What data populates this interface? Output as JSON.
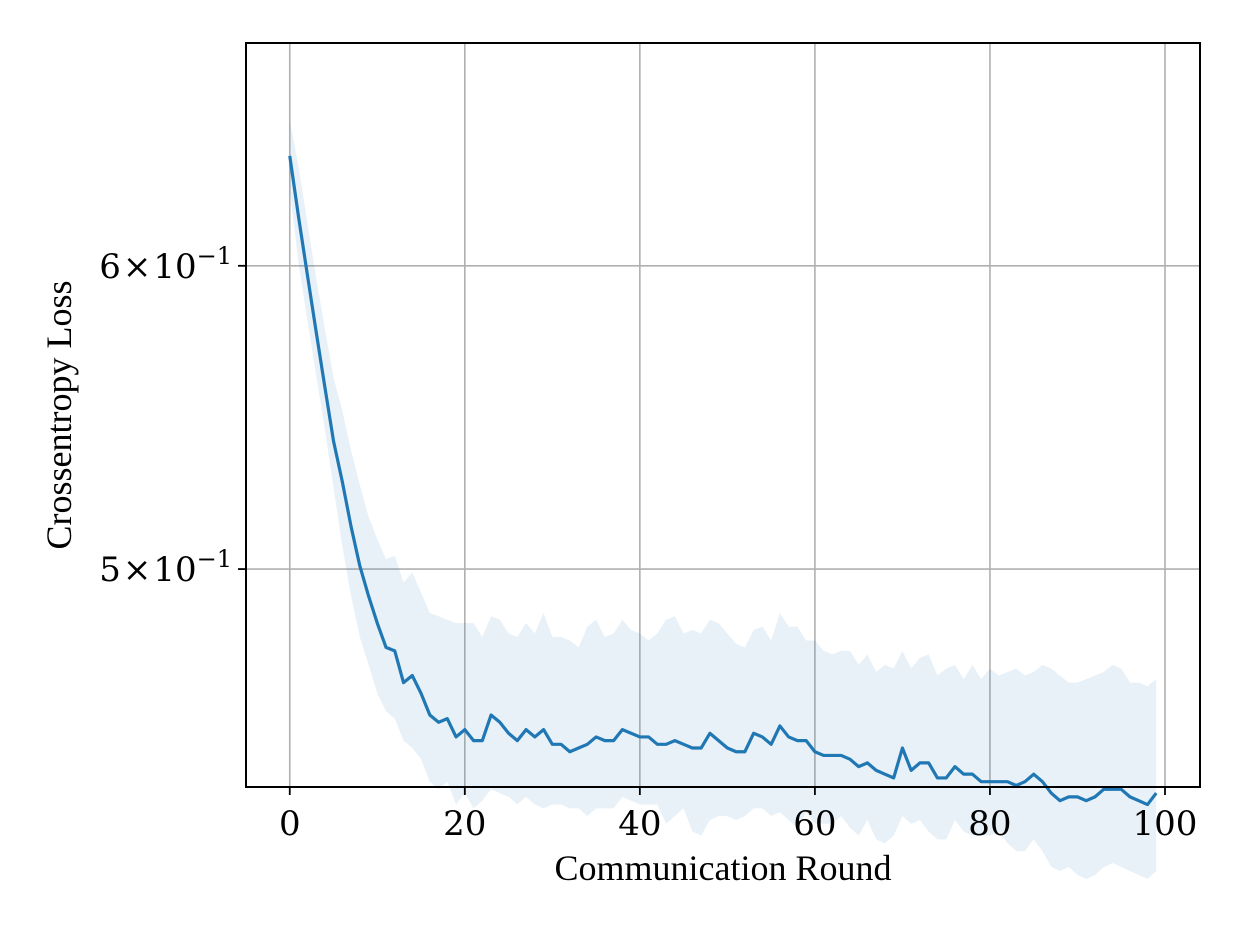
{
  "chart_data": {
    "type": "line",
    "title": "",
    "xlabel": "Communication Round",
    "ylabel": "Crossentropy Loss",
    "xlim": [
      -5,
      104
    ],
    "ylim": [
      0.4386,
      0.686
    ],
    "yscale": "log",
    "grid": true,
    "x_ticks": [
      {
        "value": 0,
        "label": "0"
      },
      {
        "value": 20,
        "label": "20"
      },
      {
        "value": 40,
        "label": "40"
      },
      {
        "value": 60,
        "label": "60"
      },
      {
        "value": 80,
        "label": "80"
      },
      {
        "value": 100,
        "label": "100"
      }
    ],
    "y_ticks": [
      {
        "value": 0.6,
        "base": "6",
        "times": "×",
        "exp_base": "10",
        "exp": "−1"
      },
      {
        "value": 0.5,
        "base": "5",
        "times": "×",
        "exp_base": "10",
        "exp": "−1"
      }
    ],
    "series": [
      {
        "color": "#1f77b4",
        "band_color": "#1f77b4",
        "band_opacity": 0.1,
        "x": [
          0,
          1,
          2,
          3,
          4,
          5,
          6,
          7,
          8,
          9,
          10,
          11,
          12,
          13,
          14,
          15,
          16,
          17,
          18,
          19,
          20,
          21,
          22,
          23,
          24,
          25,
          26,
          27,
          28,
          29,
          30,
          31,
          32,
          33,
          34,
          35,
          36,
          37,
          38,
          39,
          40,
          41,
          42,
          43,
          44,
          45,
          46,
          47,
          48,
          49,
          50,
          51,
          52,
          53,
          54,
          55,
          56,
          57,
          58,
          59,
          60,
          61,
          62,
          63,
          64,
          65,
          66,
          67,
          68,
          69,
          70,
          71,
          72,
          73,
          74,
          75,
          76,
          77,
          78,
          79,
          80,
          81,
          82,
          83,
          84,
          85,
          86,
          87,
          88,
          89,
          90,
          91,
          92,
          93,
          94,
          95,
          96,
          97,
          98,
          99
        ],
        "y": [
          0.641,
          0.618,
          0.597,
          0.577,
          0.558,
          0.54,
          0.527,
          0.513,
          0.501,
          0.492,
          0.484,
          0.477,
          0.476,
          0.467,
          0.469,
          0.464,
          0.458,
          0.456,
          0.457,
          0.452,
          0.454,
          0.451,
          0.451,
          0.458,
          0.456,
          0.453,
          0.451,
          0.454,
          0.452,
          0.454,
          0.45,
          0.45,
          0.448,
          0.449,
          0.45,
          0.452,
          0.451,
          0.451,
          0.454,
          0.453,
          0.452,
          0.452,
          0.45,
          0.45,
          0.451,
          0.45,
          0.449,
          0.449,
          0.453,
          0.451,
          0.449,
          0.448,
          0.448,
          0.453,
          0.452,
          0.45,
          0.455,
          0.452,
          0.451,
          0.451,
          0.448,
          0.447,
          0.447,
          0.447,
          0.446,
          0.444,
          0.445,
          0.443,
          0.442,
          0.441,
          0.449,
          0.443,
          0.445,
          0.445,
          0.441,
          0.441,
          0.444,
          0.442,
          0.442,
          0.44,
          0.44,
          0.44,
          0.44,
          0.439,
          0.44,
          0.442,
          0.44,
          0.437,
          0.435,
          0.436,
          0.436,
          0.435,
          0.436,
          0.438,
          0.438,
          0.438,
          0.436,
          0.435,
          0.434,
          0.437
        ],
        "y_upper": [
          0.655,
          0.637,
          0.616,
          0.596,
          0.578,
          0.561,
          0.55,
          0.537,
          0.526,
          0.516,
          0.509,
          0.503,
          0.504,
          0.496,
          0.499,
          0.493,
          0.487,
          0.486,
          0.485,
          0.484,
          0.484,
          0.484,
          0.48,
          0.486,
          0.485,
          0.481,
          0.48,
          0.484,
          0.481,
          0.487,
          0.48,
          0.48,
          0.479,
          0.477,
          0.483,
          0.485,
          0.48,
          0.481,
          0.485,
          0.482,
          0.481,
          0.479,
          0.481,
          0.485,
          0.486,
          0.481,
          0.482,
          0.481,
          0.485,
          0.484,
          0.481,
          0.478,
          0.477,
          0.482,
          0.483,
          0.479,
          0.487,
          0.483,
          0.483,
          0.479,
          0.479,
          0.476,
          0.475,
          0.476,
          0.476,
          0.472,
          0.475,
          0.47,
          0.472,
          0.471,
          0.476,
          0.471,
          0.474,
          0.475,
          0.469,
          0.471,
          0.472,
          0.468,
          0.472,
          0.468,
          0.471,
          0.469,
          0.47,
          0.471,
          0.469,
          0.47,
          0.472,
          0.471,
          0.469,
          0.467,
          0.467,
          0.468,
          0.469,
          0.47,
          0.472,
          0.471,
          0.467,
          0.467,
          0.466,
          0.468
        ],
        "y_lower": [
          0.628,
          0.601,
          0.581,
          0.562,
          0.544,
          0.525,
          0.507,
          0.492,
          0.48,
          0.472,
          0.464,
          0.459,
          0.457,
          0.451,
          0.449,
          0.446,
          0.44,
          0.438,
          0.44,
          0.434,
          0.437,
          0.433,
          0.435,
          0.438,
          0.437,
          0.436,
          0.434,
          0.436,
          0.434,
          0.433,
          0.434,
          0.434,
          0.433,
          0.433,
          0.431,
          0.433,
          0.433,
          0.433,
          0.436,
          0.435,
          0.434,
          0.434,
          0.434,
          0.429,
          0.431,
          0.433,
          0.427,
          0.426,
          0.43,
          0.431,
          0.431,
          0.43,
          0.431,
          0.433,
          0.433,
          0.431,
          0.432,
          0.43,
          0.428,
          0.432,
          0.429,
          0.429,
          0.429,
          0.431,
          0.428,
          0.426,
          0.43,
          0.425,
          0.424,
          0.426,
          0.431,
          0.429,
          0.43,
          0.427,
          0.425,
          0.425,
          0.43,
          0.427,
          0.426,
          0.426,
          0.426,
          0.427,
          0.424,
          0.422,
          0.422,
          0.425,
          0.422,
          0.418,
          0.417,
          0.418,
          0.416,
          0.415,
          0.416,
          0.418,
          0.419,
          0.418,
          0.417,
          0.416,
          0.415,
          0.417
        ]
      }
    ]
  }
}
